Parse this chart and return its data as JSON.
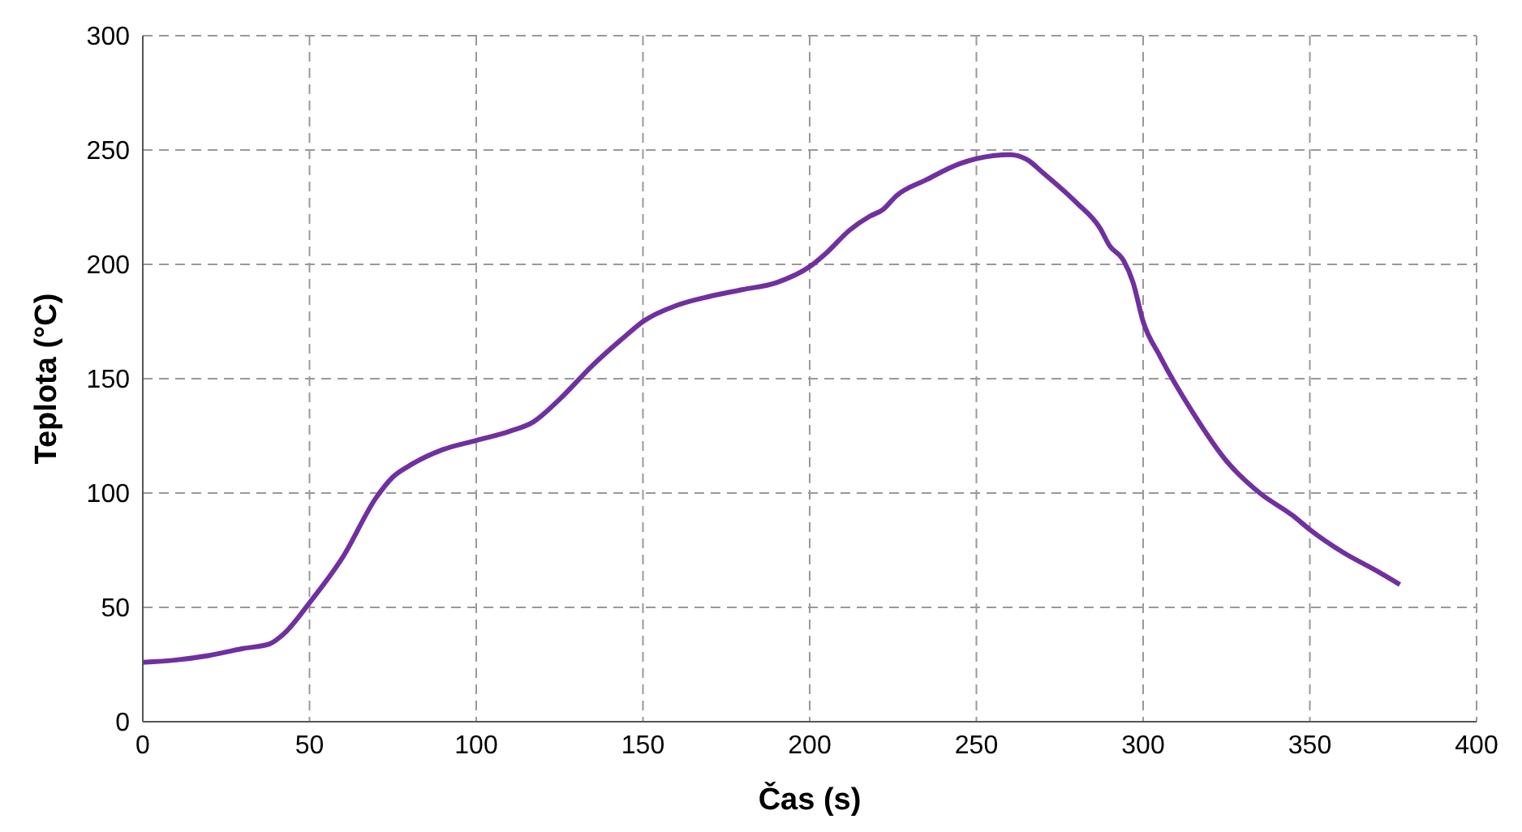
{
  "chart_data": {
    "type": "line",
    "xlabel": "Čas (s)",
    "ylabel": "Teplota (°C)",
    "x": [
      0,
      10,
      20,
      30,
      38,
      42,
      50,
      60,
      70,
      75,
      80,
      90,
      100,
      110,
      117,
      125,
      135,
      145,
      150,
      160,
      170,
      180,
      190,
      200,
      205,
      212,
      218,
      222,
      226,
      235,
      245,
      255,
      260,
      265,
      270,
      280,
      287,
      290,
      294,
      297,
      300,
      305,
      315,
      325,
      335,
      345,
      350,
      360,
      370,
      377
    ],
    "series": [
      {
        "color": "#7030a0",
        "values": [
          26,
          27,
          29,
          32,
          34,
          38,
          52,
          72,
          98,
          107,
          112,
          119,
          123,
          127,
          131,
          141,
          156,
          169,
          175,
          182,
          186,
          189,
          192,
          199,
          205,
          215,
          221,
          224,
          230,
          237,
          244,
          247.5,
          248,
          246,
          240,
          227,
          216,
          208,
          202,
          192,
          175,
          160,
          135,
          114,
          100,
          90,
          84,
          74,
          66,
          60
        ]
      }
    ],
    "xlim": [
      0,
      400
    ],
    "xticks": [
      0,
      50,
      100,
      150,
      200,
      250,
      300,
      350,
      400
    ],
    "ylim": [
      0,
      300
    ],
    "yticks": [
      0,
      50,
      100,
      150,
      200,
      250,
      300
    ],
    "grid": true,
    "marker": "none",
    "line_style": "solid",
    "legend": false
  }
}
